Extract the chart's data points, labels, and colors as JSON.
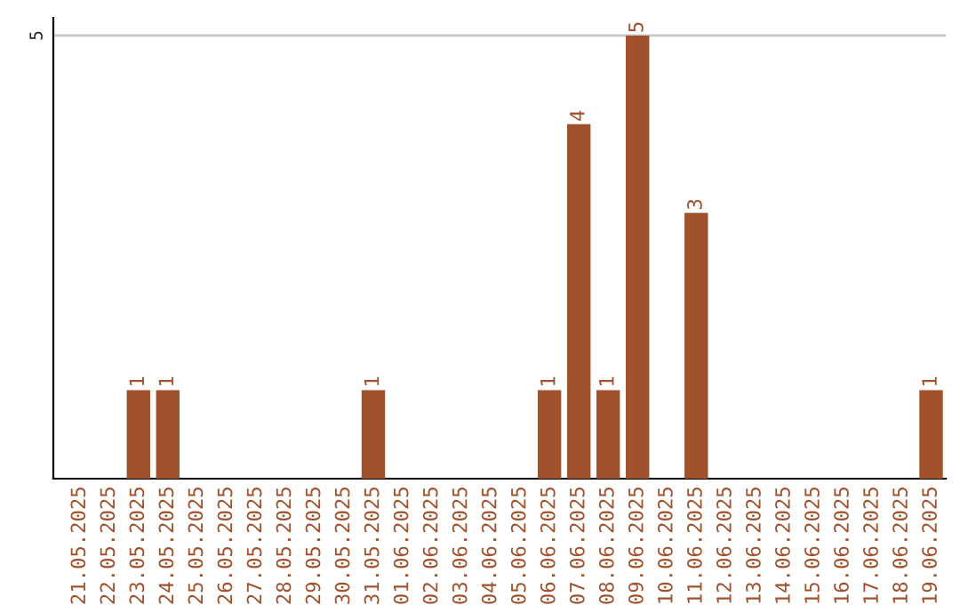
{
  "chart_data": {
    "type": "bar",
    "categories": [
      "21.05.2025",
      "22.05.2025",
      "23.05.2025",
      "24.05.2025",
      "25.05.2025",
      "26.05.2025",
      "27.05.2025",
      "28.05.2025",
      "29.05.2025",
      "30.05.2025",
      "31.05.2025",
      "01.06.2025",
      "02.06.2025",
      "03.06.2025",
      "04.06.2025",
      "05.06.2025",
      "06.06.2025",
      "07.06.2025",
      "08.06.2025",
      "09.06.2025",
      "10.06.2025",
      "11.06.2025",
      "12.06.2025",
      "13.06.2025",
      "14.06.2025",
      "15.06.2025",
      "16.06.2025",
      "17.06.2025",
      "18.06.2025",
      "19.06.2025"
    ],
    "values": [
      0,
      0,
      1,
      1,
      0,
      0,
      0,
      0,
      0,
      0,
      1,
      0,
      0,
      0,
      0,
      0,
      1,
      4,
      1,
      5,
      0,
      3,
      0,
      0,
      0,
      0,
      0,
      0,
      0,
      1
    ],
    "value_labels": [
      null,
      null,
      "1",
      "1",
      null,
      null,
      null,
      null,
      null,
      null,
      "1",
      null,
      null,
      null,
      null,
      null,
      "1",
      "4",
      "1",
      "5",
      null,
      "3",
      null,
      null,
      null,
      null,
      null,
      null,
      null,
      "1"
    ],
    "color": "#a0522d",
    "ylim": [
      0,
      5.2
    ],
    "yticks": [
      5
    ],
    "grid": "y"
  }
}
